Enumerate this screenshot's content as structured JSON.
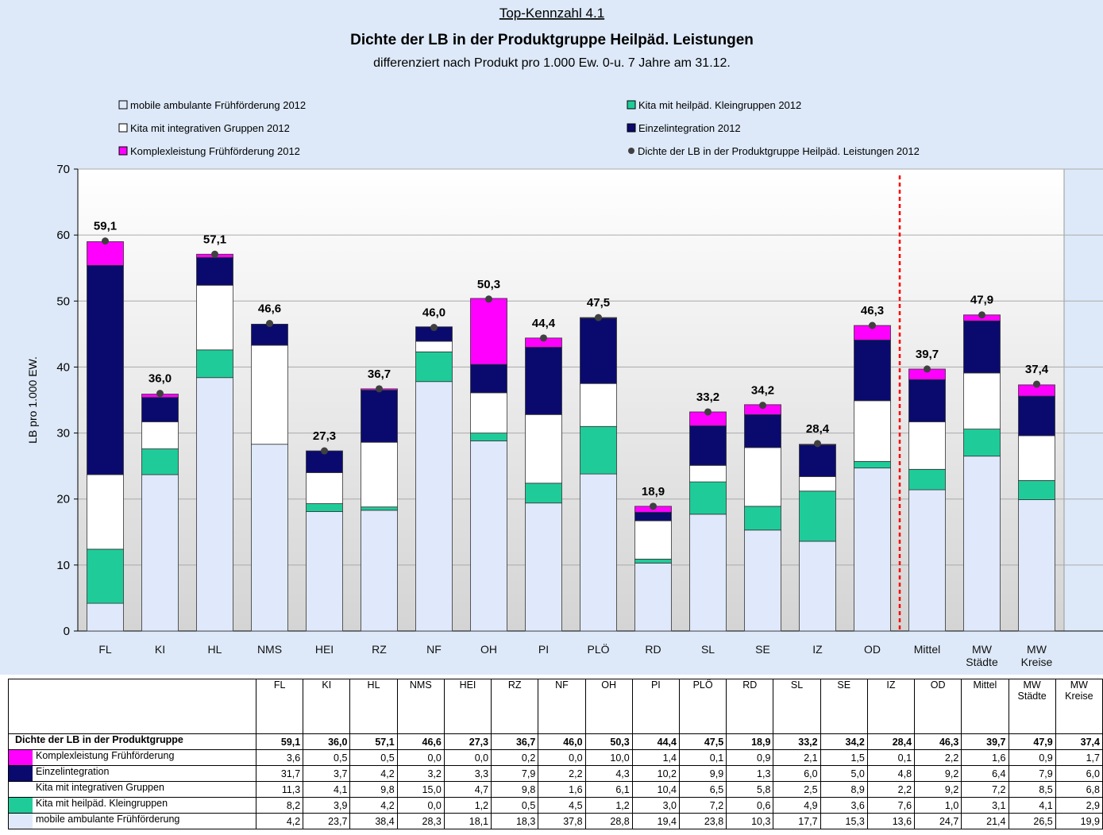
{
  "chart_data": {
    "type": "stacked-bar",
    "title": "Top-Kennzahl 4.1",
    "subtitle": "Dichte der LB in der Produktgruppe Heilpäd. Leistungen",
    "subtitle2": "differenziert nach Produkt pro 1.000 Ew. 0-u. 7 Jahre am 31.12.",
    "y_label": "LB pro 1.000 EW.",
    "categories": [
      "FL",
      "KI",
      "HL",
      "NMS",
      "HEI",
      "RZ",
      "NF",
      "OH",
      "PI",
      "PLÖ",
      "RD",
      "SL",
      "SE",
      "IZ",
      "OD",
      "Mittel",
      "MW Städte",
      "MW Kreise"
    ],
    "ylim": [
      0,
      70
    ],
    "yticks": [
      0,
      10,
      20,
      30,
      40,
      50,
      60,
      70
    ],
    "grid": true,
    "series": [
      {
        "name": "mobile ambulante Frühförderung 2012",
        "color": "#dfe9fb",
        "values": [
          4.2,
          23.7,
          38.4,
          28.3,
          18.1,
          18.3,
          37.8,
          28.8,
          19.4,
          23.8,
          10.3,
          17.7,
          15.3,
          13.6,
          24.7,
          21.4,
          26.5,
          19.9
        ],
        "value_labels": [
          "4,2",
          "23,7",
          "38,4",
          "28,3",
          "18,1",
          "18,3",
          "37,8",
          "28,8",
          "19,4",
          "23,8",
          "10,3",
          "17,7",
          "15,3",
          "13,6",
          "24,7",
          "21,4",
          "26,5",
          "19,9"
        ]
      },
      {
        "name": "Kita mit heilpäd. Kleingruppen 2012",
        "color": "#1fcc99",
        "values": [
          8.2,
          3.9,
          4.2,
          0.0,
          1.2,
          0.5,
          4.5,
          1.2,
          3.0,
          7.2,
          0.6,
          4.9,
          3.6,
          7.6,
          1.0,
          3.1,
          4.1,
          2.9
        ],
        "value_labels": [
          "8,2",
          "3,9",
          "4,2",
          "0,0",
          "1,2",
          "0,5",
          "4,5",
          "1,2",
          "3,0",
          "7,2",
          "0,6",
          "4,9",
          "3,6",
          "7,6",
          "1,0",
          "3,1",
          "4,1",
          "2,9"
        ]
      },
      {
        "name": "Kita mit integrativen Gruppen 2012",
        "color": "#ffffff",
        "values": [
          11.3,
          4.1,
          9.8,
          15.0,
          4.7,
          9.8,
          1.6,
          6.1,
          10.4,
          6.5,
          5.8,
          2.5,
          8.9,
          2.2,
          9.2,
          7.2,
          8.5,
          6.8
        ],
        "value_labels": [
          "11,3",
          "4,1",
          "9,8",
          "15,0",
          "4,7",
          "9,8",
          "1,6",
          "6,1",
          "10,4",
          "6,5",
          "5,8",
          "2,5",
          "8,9",
          "2,2",
          "9,2",
          "7,2",
          "8,5",
          "6,8"
        ]
      },
      {
        "name": "Einzelintegration 2012",
        "color": "#0a0a6e",
        "values": [
          31.7,
          3.7,
          4.2,
          3.2,
          3.3,
          7.9,
          2.2,
          4.3,
          10.2,
          9.9,
          1.3,
          6.0,
          5.0,
          4.8,
          9.2,
          6.4,
          7.9,
          6.0
        ],
        "value_labels": [
          "31,7",
          "3,7",
          "4,2",
          "3,2",
          "3,3",
          "7,9",
          "2,2",
          "4,3",
          "10,2",
          "9,9",
          "1,3",
          "6,0",
          "5,0",
          "4,8",
          "9,2",
          "6,4",
          "7,9",
          "6,0"
        ]
      },
      {
        "name": "Komplexleistung Frühförderung 2012",
        "color": "#ff00ff",
        "values": [
          3.6,
          0.5,
          0.5,
          0.0,
          0.0,
          0.2,
          0.0,
          10.0,
          1.4,
          0.1,
          0.9,
          2.1,
          1.5,
          0.1,
          2.2,
          1.6,
          0.9,
          1.7
        ],
        "value_labels": [
          "3,6",
          "0,5",
          "0,5",
          "0,0",
          "0,0",
          "0,2",
          "0,0",
          "10,0",
          "1,4",
          "0,1",
          "0,9",
          "2,1",
          "1,5",
          "0,1",
          "2,2",
          "1,6",
          "0,9",
          "1,7"
        ]
      }
    ],
    "total": {
      "name": "Dichte der LB in der Produktgruppe Heilpäd. Leistungen 2012",
      "color": "#404040",
      "values": [
        59.1,
        36.0,
        57.1,
        46.6,
        27.3,
        36.7,
        46.0,
        50.3,
        44.4,
        47.5,
        18.9,
        33.2,
        34.2,
        28.4,
        46.3,
        39.7,
        47.9,
        37.4
      ],
      "value_labels": [
        "59,1",
        "36,0",
        "57,1",
        "46,6",
        "27,3",
        "36,7",
        "46,0",
        "50,3",
        "44,4",
        "47,5",
        "18,9",
        "33,2",
        "34,2",
        "28,4",
        "46,3",
        "39,7",
        "47,9",
        "37,4"
      ]
    },
    "table": {
      "row_labels": [
        "Dichte der LB in der Produktgruppe",
        "Komplexleistung Frühförderung",
        "Einzelintegration",
        "Kita mit integrativen Gruppen",
        "Kita mit heilpäd. Kleingruppen",
        "mobile ambulante Frühförderung"
      ]
    }
  }
}
